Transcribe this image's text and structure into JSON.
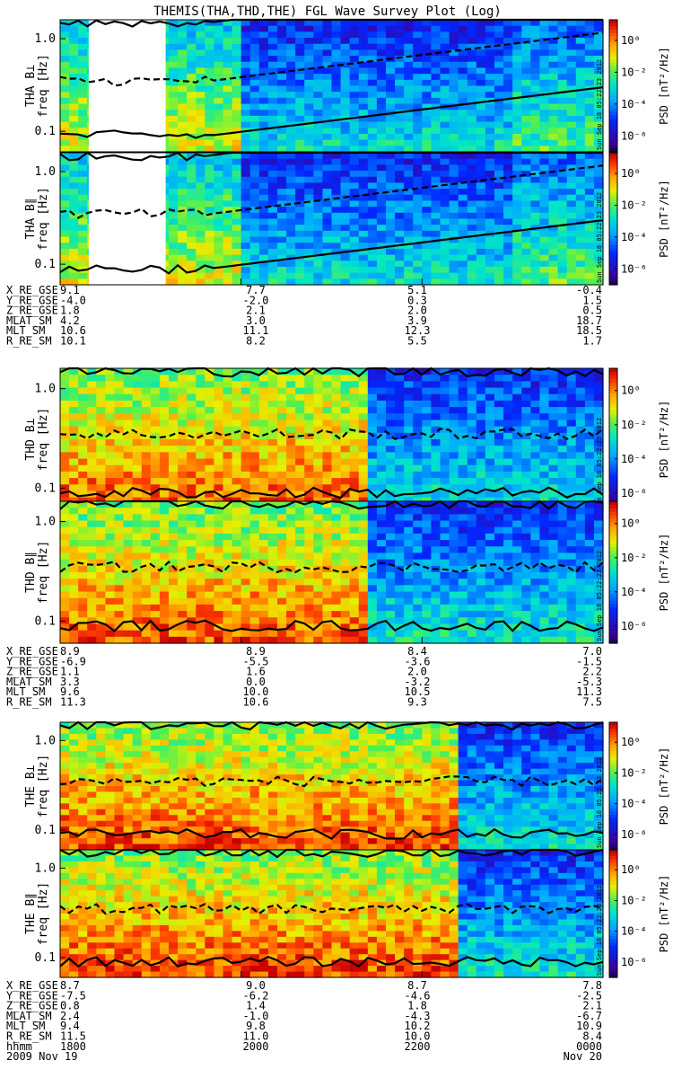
{
  "chart_data": {
    "type": "heatmap",
    "title": "THEMIS(THA,THD,THE) FGL Wave Survey Plot (Log)",
    "colorbar": {
      "label": "PSD [nT²/Hz]",
      "tick_labels": [
        "10⁰",
        "10⁻²",
        "10⁻⁴",
        "10⁻⁶"
      ],
      "tick_exponents": [
        0,
        -2,
        -4,
        -6
      ],
      "range_log10": [
        -7,
        1.3
      ]
    },
    "freq_axis": {
      "scale": "log",
      "range_hz": [
        0.06,
        1.6
      ],
      "tick_values": [
        1.0,
        0.1
      ],
      "tick_labels": [
        "1.0",
        "0.1"
      ],
      "label": "freq [Hz]"
    },
    "stamp": "Sun Sep 18 05:22:23 2012",
    "spacecraft": [
      {
        "id": "THA",
        "panels": [
          {
            "label": "THA B⊥",
            "data_gap_minutes": [
              0,
              35
            ]
          },
          {
            "label": "THA B∥",
            "data_gap_minutes": [
              0,
              35
            ]
          }
        ],
        "ephemeris": [
          {
            "name": "X_RE_GSE",
            "values": [
              "9.1",
              "7.7",
              "5.1",
              "-0.4"
            ]
          },
          {
            "name": "Y_RE_GSE",
            "values": [
              "-4.0",
              "-2.0",
              "0.3",
              "1.5"
            ]
          },
          {
            "name": "Z_RE_GSE",
            "values": [
              "1.8",
              "2.1",
              "2.0",
              "0.5"
            ]
          },
          {
            "name": "MLAT_SM",
            "values": [
              "4.2",
              "3.0",
              "3.9",
              "18.7"
            ]
          },
          {
            "name": "MLT_SM",
            "values": [
              "10.6",
              "11.1",
              "12.3",
              "18.5"
            ]
          },
          {
            "name": "R_RE_SM",
            "values": [
              "10.1",
              "8.2",
              "5.5",
              "1.7"
            ]
          }
        ]
      },
      {
        "id": "THD",
        "panels": [
          {
            "label": "THD B⊥"
          },
          {
            "label": "THD B∥"
          }
        ],
        "ephemeris": [
          {
            "name": "X_RE_GSE",
            "values": [
              "8.9",
              "8.9",
              "8.4",
              "7.0"
            ]
          },
          {
            "name": "Y_RE_GSE",
            "values": [
              "-6.9",
              "-5.5",
              "-3.6",
              "-1.5"
            ]
          },
          {
            "name": "Z_RE_GSE",
            "values": [
              "1.1",
              "1.6",
              "2.0",
              "2.2"
            ]
          },
          {
            "name": "MLAT_SM",
            "values": [
              "3.3",
              "0.0",
              "-3.2",
              "-5.3"
            ]
          },
          {
            "name": "MLT_SM",
            "values": [
              "9.6",
              "10.0",
              "10.5",
              "11.3"
            ]
          },
          {
            "name": "R_RE_SM",
            "values": [
              "11.3",
              "10.6",
              "9.3",
              "7.5"
            ]
          }
        ]
      },
      {
        "id": "THE",
        "panels": [
          {
            "label": "THE B⊥"
          },
          {
            "label": "THE B∥"
          }
        ],
        "ephemeris": [
          {
            "name": "X_RE_GSE",
            "values": [
              "8.7",
              "9.0",
              "8.7",
              "7.8"
            ]
          },
          {
            "name": "Y_RE_GSE",
            "values": [
              "-7.5",
              "-6.2",
              "-4.6",
              "-2.5"
            ]
          },
          {
            "name": "Z_RE_GSE",
            "values": [
              "0.8",
              "1.4",
              "1.8",
              "2.1"
            ]
          },
          {
            "name": "MLAT_SM",
            "values": [
              "2.4",
              "-1.0",
              "-4.3",
              "-6.7"
            ]
          },
          {
            "name": "MLT_SM",
            "values": [
              "9.4",
              "9.8",
              "10.2",
              "10.9"
            ]
          },
          {
            "name": "R_RE_SM",
            "values": [
              "11.5",
              "11.0",
              "10.0",
              "8.4"
            ]
          }
        ]
      }
    ],
    "time_axis": {
      "row_label": "hhmm",
      "tick_labels": [
        "1800",
        "2000",
        "2200",
        "0000"
      ],
      "start_date": "2009 Nov 19",
      "end_date": "Nov 20",
      "range_minutes": [
        0,
        360
      ],
      "tick_minutes": [
        0,
        120,
        240,
        360
      ]
    }
  }
}
